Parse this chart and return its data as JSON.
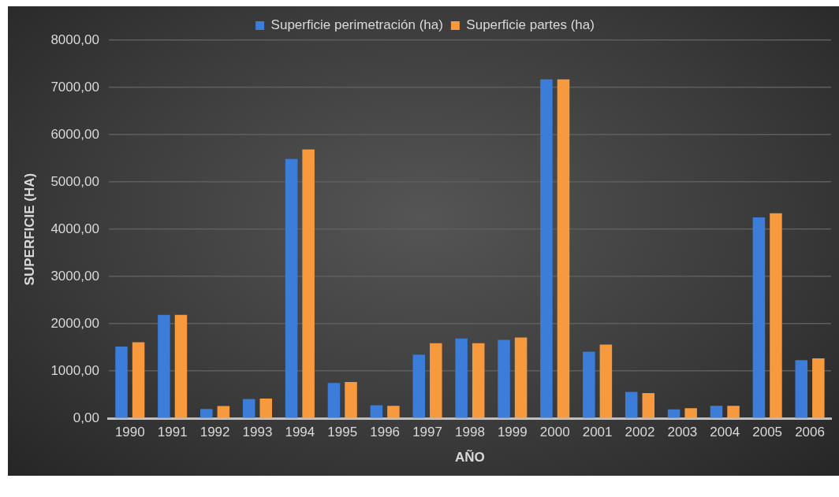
{
  "chart_data": {
    "type": "bar",
    "categories": [
      "1990",
      "1991",
      "1992",
      "1993",
      "1994",
      "1995",
      "1996",
      "1997",
      "1998",
      "1999",
      "2000",
      "2001",
      "2002",
      "2003",
      "2004",
      "2005",
      "2006"
    ],
    "series": [
      {
        "name": "Superficie perimetración (ha)",
        "color": "#3b7dd8",
        "values": [
          1520,
          2190,
          200,
          410,
          5490,
          750,
          280,
          1350,
          1690,
          1660,
          7170,
          1410,
          560,
          190,
          265,
          4250,
          1230
        ]
      },
      {
        "name": "Superficie partes (ha)",
        "color": "#f79a3e",
        "values": [
          1610,
          2190,
          260,
          420,
          5690,
          770,
          265,
          1590,
          1590,
          1710,
          7170,
          1560,
          535,
          215,
          265,
          4340,
          1270
        ]
      }
    ],
    "xlabel": "AÑO",
    "ylabel": "SUPERFICIE (HA)",
    "ylim": [
      0,
      8000
    ],
    "yticks": [
      {
        "value": 0,
        "label": "0,00"
      },
      {
        "value": 1000,
        "label": "1000,00"
      },
      {
        "value": 2000,
        "label": "2000,00"
      },
      {
        "value": 3000,
        "label": "3000,00"
      },
      {
        "value": 4000,
        "label": "4000,00"
      },
      {
        "value": 5000,
        "label": "5000,00"
      },
      {
        "value": 6000,
        "label": "6000,00"
      },
      {
        "value": 7000,
        "label": "7000,00"
      },
      {
        "value": 8000,
        "label": "8000,00"
      }
    ],
    "grid": "y",
    "legend": "top"
  }
}
